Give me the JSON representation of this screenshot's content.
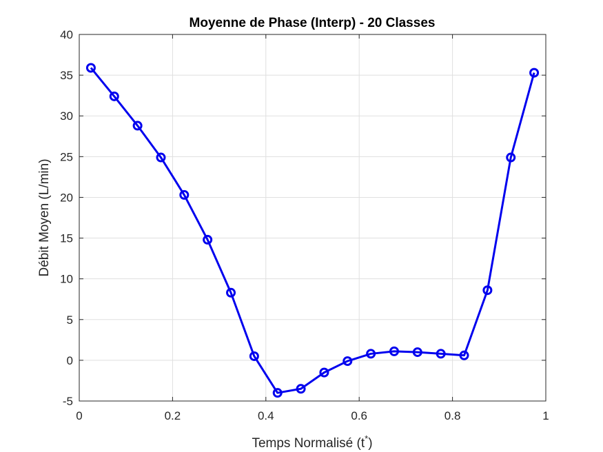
{
  "chart_data": {
    "type": "line",
    "title": "Moyenne de Phase (Interp) - 20 Classes",
    "xlabel": "Temps Normalisé (t",
    "xlabel_superscript": "*",
    "xlabel_suffix": ")",
    "ylabel": "Débit Moyen (L/min)",
    "xlim": [
      0,
      1
    ],
    "ylim": [
      -5,
      40
    ],
    "xticks": [
      0,
      0.2,
      0.4,
      0.6,
      0.8,
      1
    ],
    "xtick_labels": [
      "0",
      "0.2",
      "0.4",
      "0.6",
      "0.8",
      "1"
    ],
    "yticks": [
      -5,
      0,
      5,
      10,
      15,
      20,
      25,
      30,
      35,
      40
    ],
    "ytick_labels": [
      "-5",
      "0",
      "5",
      "10",
      "15",
      "20",
      "25",
      "30",
      "35",
      "40"
    ],
    "grid": true,
    "legend": "none",
    "series": [
      {
        "color": "#0000ee",
        "marker": "circle",
        "x": [
          0.025,
          0.075,
          0.125,
          0.175,
          0.225,
          0.275,
          0.325,
          0.375,
          0.425,
          0.475,
          0.525,
          0.575,
          0.625,
          0.675,
          0.725,
          0.775,
          0.825,
          0.875,
          0.925,
          0.975
        ],
        "y": [
          35.9,
          32.4,
          28.8,
          24.9,
          20.3,
          14.8,
          8.3,
          0.5,
          -4.0,
          -3.5,
          -1.5,
          -0.1,
          0.8,
          1.1,
          1.0,
          0.8,
          0.6,
          8.6,
          24.9,
          35.3
        ]
      }
    ]
  }
}
